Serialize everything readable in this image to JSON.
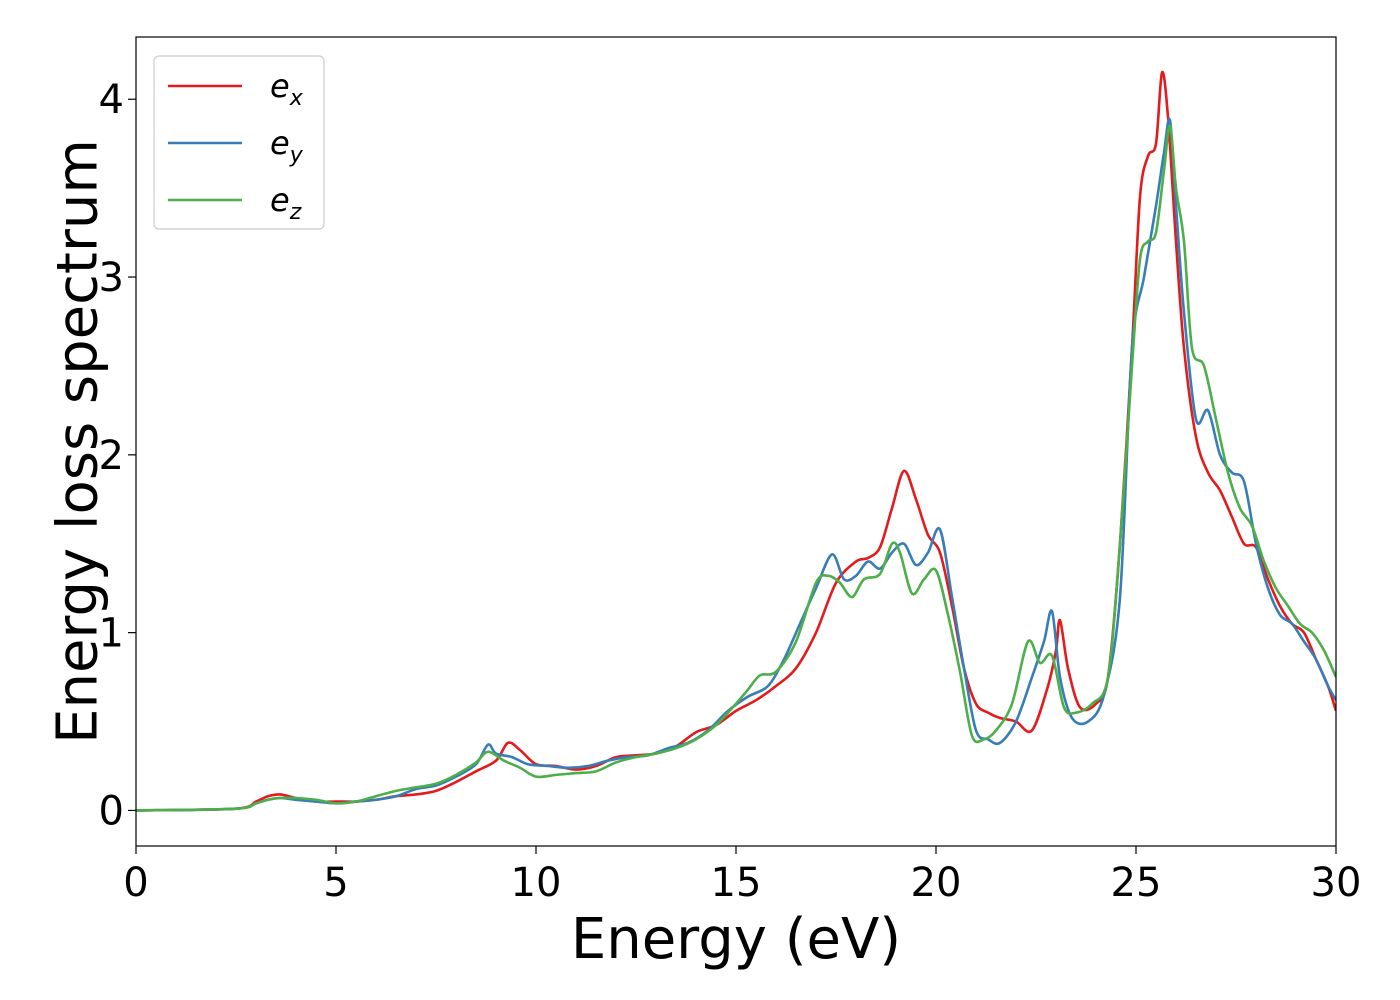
{
  "chart_data": {
    "type": "line",
    "title": "",
    "xlabel": "Energy (eV)",
    "ylabel": "Energy loss spectrum",
    "xlim": [
      0,
      30
    ],
    "ylim": [
      -0.2,
      4.35
    ],
    "xticks": [
      0,
      5,
      10,
      15,
      20,
      25,
      30
    ],
    "xtick_labels": [
      "0",
      "5",
      "10",
      "15",
      "20",
      "25",
      "30"
    ],
    "yticks": [
      0,
      1,
      2,
      3,
      4
    ],
    "ytick_labels": [
      "0",
      "1",
      "2",
      "3",
      "4"
    ],
    "grid": false,
    "legend_position": "top-left",
    "series": [
      {
        "name": "e_x",
        "label_base": "e",
        "label_sub": "x",
        "color": "#e41a1c",
        "x": [
          0,
          2.5,
          3,
          3.3,
          3.6,
          4,
          4.5,
          5,
          5.5,
          6,
          6.5,
          7,
          7.5,
          8,
          8.5,
          9,
          9.3,
          9.6,
          10,
          10.5,
          11,
          11.5,
          12,
          12.5,
          13,
          13.5,
          14,
          14.5,
          15,
          15.5,
          16,
          16.5,
          17,
          17.5,
          18,
          18.3,
          18.6,
          18.9,
          19.2,
          19.5,
          19.8,
          20.1,
          20.4,
          20.7,
          21,
          21.3,
          21.6,
          22,
          22.4,
          22.8,
          23,
          23.1,
          23.3,
          23.6,
          24,
          24.3,
          24.6,
          24.9,
          25.1,
          25.3,
          25.5,
          25.65,
          25.8,
          26,
          26.2,
          26.5,
          26.8,
          27.1,
          27.4,
          27.7,
          28,
          28.3,
          28.6,
          28.9,
          29.2,
          29.5,
          29.8,
          30
        ],
        "y": [
          0.0,
          0.01,
          0.05,
          0.08,
          0.09,
          0.07,
          0.05,
          0.05,
          0.05,
          0.06,
          0.08,
          0.09,
          0.11,
          0.16,
          0.22,
          0.28,
          0.38,
          0.34,
          0.26,
          0.25,
          0.23,
          0.25,
          0.3,
          0.31,
          0.32,
          0.36,
          0.44,
          0.48,
          0.56,
          0.62,
          0.7,
          0.8,
          1.0,
          1.28,
          1.4,
          1.42,
          1.48,
          1.7,
          1.91,
          1.75,
          1.55,
          1.45,
          1.15,
          0.8,
          0.6,
          0.55,
          0.52,
          0.5,
          0.45,
          0.7,
          0.9,
          1.07,
          0.8,
          0.58,
          0.6,
          0.75,
          1.5,
          2.6,
          3.45,
          3.68,
          3.75,
          4.15,
          3.9,
          3.2,
          2.6,
          2.1,
          1.9,
          1.8,
          1.65,
          1.5,
          1.48,
          1.3,
          1.15,
          1.05,
          1.0,
          0.85,
          0.7,
          0.56
        ]
      },
      {
        "name": "e_y",
        "label_base": "e",
        "label_sub": "y",
        "color": "#377eb8",
        "x": [
          0,
          2.5,
          3,
          3.3,
          3.6,
          4,
          4.5,
          5,
          5.5,
          6,
          6.5,
          7,
          7.5,
          8,
          8.5,
          8.8,
          9,
          9.4,
          9.8,
          10.3,
          10.8,
          11.3,
          11.8,
          12.3,
          12.8,
          13.3,
          13.8,
          14.3,
          14.8,
          15.3,
          15.8,
          16.2,
          16.6,
          17,
          17.4,
          17.7,
          18,
          18.3,
          18.6,
          18.9,
          19.2,
          19.5,
          19.8,
          20.1,
          20.4,
          20.7,
          21,
          21.3,
          21.6,
          22,
          22.4,
          22.7,
          22.9,
          23.1,
          23.4,
          23.8,
          24.2,
          24.6,
          24.9,
          25.2,
          25.5,
          25.7,
          25.85,
          26,
          26.2,
          26.5,
          26.8,
          27.1,
          27.4,
          27.7,
          28,
          28.3,
          28.6,
          28.9,
          29.2,
          29.5,
          29.8,
          30
        ],
        "y": [
          0.0,
          0.01,
          0.04,
          0.06,
          0.07,
          0.06,
          0.05,
          0.04,
          0.05,
          0.06,
          0.08,
          0.12,
          0.14,
          0.19,
          0.26,
          0.37,
          0.32,
          0.3,
          0.26,
          0.25,
          0.24,
          0.25,
          0.28,
          0.3,
          0.31,
          0.35,
          0.38,
          0.45,
          0.56,
          0.64,
          0.7,
          0.85,
          1.05,
          1.25,
          1.44,
          1.3,
          1.32,
          1.4,
          1.36,
          1.45,
          1.5,
          1.38,
          1.45,
          1.58,
          1.2,
          0.8,
          0.45,
          0.4,
          0.38,
          0.5,
          0.75,
          0.95,
          1.12,
          0.75,
          0.52,
          0.5,
          0.65,
          1.2,
          2.6,
          3.0,
          3.4,
          3.7,
          3.88,
          3.4,
          2.8,
          2.2,
          2.25,
          2.0,
          1.9,
          1.85,
          1.5,
          1.25,
          1.1,
          1.05,
          0.95,
          0.85,
          0.7,
          0.62
        ]
      },
      {
        "name": "e_z",
        "label_base": "e",
        "label_sub": "z",
        "color": "#4daf4a",
        "x": [
          0,
          2.5,
          3,
          3.3,
          3.6,
          4,
          4.5,
          5,
          5.5,
          6,
          6.5,
          7,
          7.5,
          8,
          8.5,
          8.8,
          9.2,
          9.6,
          10,
          10.5,
          11,
          11.5,
          12,
          12.5,
          13,
          13.5,
          14,
          14.5,
          15,
          15.3,
          15.6,
          16,
          16.5,
          17,
          17.3,
          17.6,
          17.9,
          18.2,
          18.6,
          18.9,
          19.1,
          19.4,
          19.7,
          20,
          20.3,
          20.6,
          20.9,
          21.2,
          21.5,
          21.9,
          22.3,
          22.6,
          22.9,
          23.2,
          23.5,
          23.9,
          24.3,
          24.6,
          24.9,
          25.1,
          25.3,
          25.5,
          25.7,
          25.85,
          26,
          26.2,
          26.4,
          26.7,
          27,
          27.3,
          27.6,
          27.9,
          28.2,
          28.5,
          28.8,
          29.1,
          29.4,
          29.7,
          30
        ],
        "y": [
          0.0,
          0.01,
          0.04,
          0.06,
          0.07,
          0.07,
          0.06,
          0.04,
          0.05,
          0.08,
          0.11,
          0.13,
          0.15,
          0.2,
          0.27,
          0.33,
          0.28,
          0.24,
          0.19,
          0.2,
          0.21,
          0.22,
          0.27,
          0.3,
          0.32,
          0.35,
          0.4,
          0.48,
          0.6,
          0.68,
          0.76,
          0.78,
          0.95,
          1.28,
          1.32,
          1.28,
          1.2,
          1.3,
          1.33,
          1.5,
          1.45,
          1.22,
          1.3,
          1.35,
          1.1,
          0.78,
          0.42,
          0.4,
          0.45,
          0.6,
          0.95,
          0.83,
          0.87,
          0.58,
          0.55,
          0.6,
          0.75,
          1.5,
          2.5,
          3.1,
          3.2,
          3.25,
          3.6,
          3.85,
          3.5,
          3.2,
          2.6,
          2.5,
          2.2,
          1.9,
          1.7,
          1.6,
          1.4,
          1.25,
          1.15,
          1.05,
          1.0,
          0.9,
          0.75
        ]
      }
    ]
  }
}
